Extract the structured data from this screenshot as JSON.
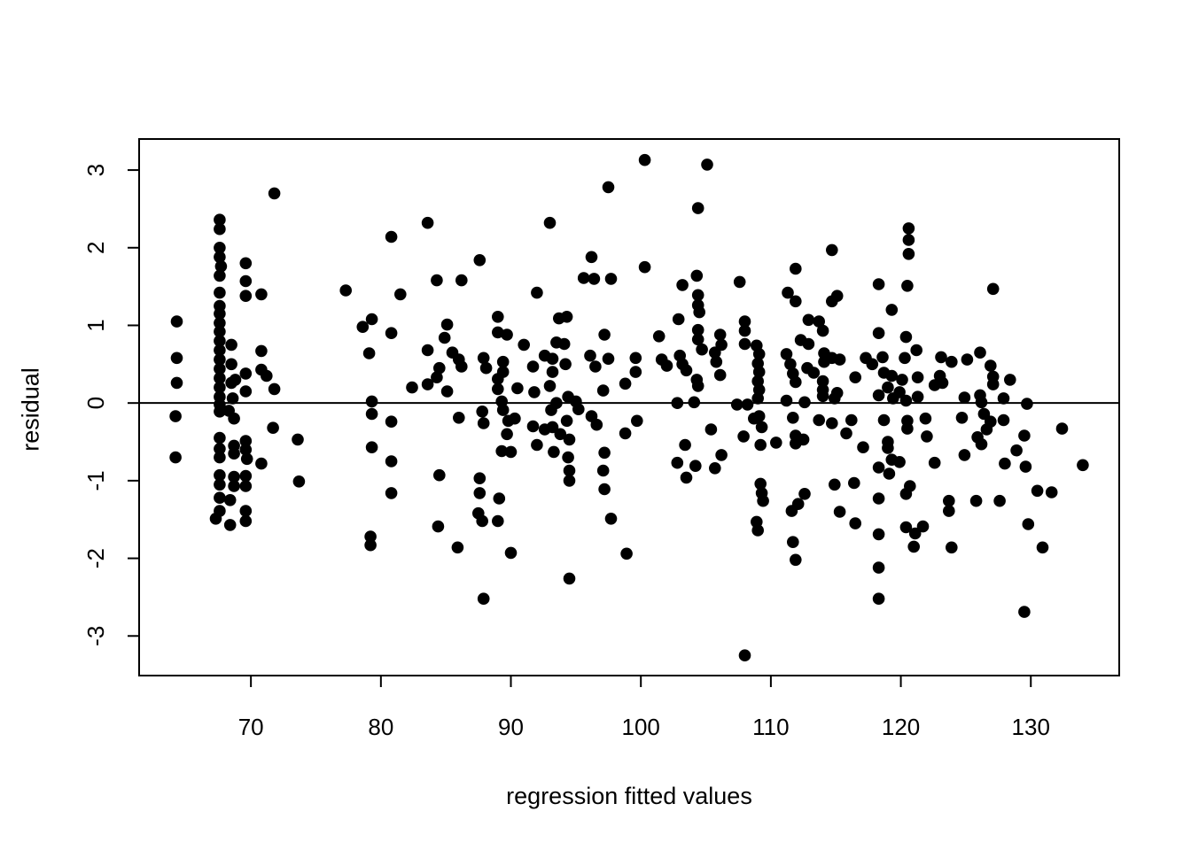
{
  "chart_data": {
    "type": "scatter",
    "title": "",
    "xlabel": "regression fitted values",
    "ylabel": "residual",
    "x_axis": {
      "label": "regression fitted values",
      "ticks": [
        70,
        80,
        90,
        100,
        110,
        120,
        130
      ],
      "range": [
        61.4,
        136.8
      ]
    },
    "y_axis": {
      "label": "residual",
      "ticks": [
        -3,
        -2,
        -1,
        0,
        1,
        2,
        3
      ],
      "range": [
        -3.51,
        3.4
      ]
    },
    "reference_line_y": 0,
    "grid": false,
    "legend": "none",
    "marker": {
      "shape": "filled-circle",
      "color": "#000000",
      "radius_px": 6.8
    },
    "points": [
      [
        71.8,
        2.7
      ],
      [
        67.6,
        2.36
      ],
      [
        67.6,
        2.24
      ],
      [
        67.6,
        2.0
      ],
      [
        67.6,
        1.88
      ],
      [
        67.7,
        1.76
      ],
      [
        67.6,
        1.64
      ],
      [
        69.6,
        1.8
      ],
      [
        69.6,
        1.57
      ],
      [
        69.6,
        1.38
      ],
      [
        70.8,
        1.4
      ],
      [
        77.3,
        1.45
      ],
      [
        67.6,
        1.42
      ],
      [
        67.6,
        1.25
      ],
      [
        67.6,
        1.15
      ],
      [
        67.6,
        1.03
      ],
      [
        67.6,
        0.92
      ],
      [
        64.3,
        1.05
      ],
      [
        64.3,
        0.58
      ],
      [
        64.3,
        0.26
      ],
      [
        64.2,
        -0.17
      ],
      [
        64.2,
        -0.7
      ],
      [
        67.6,
        0.8
      ],
      [
        67.6,
        0.68
      ],
      [
        67.6,
        0.56
      ],
      [
        67.6,
        0.44
      ],
      [
        67.6,
        0.32
      ],
      [
        67.6,
        0.2
      ],
      [
        67.6,
        0.08
      ],
      [
        68.5,
        0.75
      ],
      [
        68.5,
        0.5
      ],
      [
        68.5,
        0.26
      ],
      [
        68.6,
        0.06
      ],
      [
        69.6,
        0.38
      ],
      [
        69.6,
        0.15
      ],
      [
        70.8,
        0.67
      ],
      [
        70.8,
        0.43
      ],
      [
        71.2,
        0.35
      ],
      [
        71.8,
        0.18
      ],
      [
        68.8,
        0.3
      ],
      [
        67.6,
        -0.02
      ],
      [
        68.3,
        -0.1
      ],
      [
        78.6,
        0.98
      ],
      [
        79.3,
        1.08
      ],
      [
        79.1,
        0.64
      ],
      [
        79.3,
        0.02
      ],
      [
        67.6,
        -0.11
      ],
      [
        68.7,
        -0.2
      ],
      [
        67.6,
        -0.45
      ],
      [
        67.6,
        -0.59
      ],
      [
        67.6,
        -0.7
      ],
      [
        68.7,
        -0.55
      ],
      [
        68.7,
        -0.65
      ],
      [
        69.6,
        -0.49
      ],
      [
        69.6,
        -0.6
      ],
      [
        69.7,
        -0.72
      ],
      [
        70.8,
        -0.78
      ],
      [
        71.7,
        -0.32
      ],
      [
        73.6,
        -0.47
      ],
      [
        67.6,
        -0.93
      ],
      [
        67.6,
        -1.05
      ],
      [
        68.7,
        -0.95
      ],
      [
        68.7,
        -1.07
      ],
      [
        69.6,
        -0.94
      ],
      [
        69.6,
        -1.07
      ],
      [
        73.7,
        -1.01
      ],
      [
        67.6,
        -1.22
      ],
      [
        68.4,
        -1.25
      ],
      [
        67.6,
        -1.39
      ],
      [
        67.3,
        -1.49
      ],
      [
        68.4,
        -1.57
      ],
      [
        69.6,
        -1.39
      ],
      [
        69.6,
        -1.52
      ],
      [
        79.3,
        -0.14
      ],
      [
        79.3,
        -0.57
      ],
      [
        79.2,
        -1.72
      ],
      [
        79.2,
        -1.83
      ],
      [
        97.5,
        2.78
      ],
      [
        83.6,
        2.32
      ],
      [
        80.8,
        2.14
      ],
      [
        93.0,
        2.32
      ],
      [
        87.6,
        1.84
      ],
      [
        84.3,
        1.58
      ],
      [
        86.2,
        1.58
      ],
      [
        96.2,
        1.88
      ],
      [
        95.6,
        1.61
      ],
      [
        96.4,
        1.6
      ],
      [
        97.7,
        1.6
      ],
      [
        81.5,
        1.4
      ],
      [
        92.0,
        1.42
      ],
      [
        89.0,
        1.11
      ],
      [
        93.7,
        1.09
      ],
      [
        94.3,
        1.11
      ],
      [
        80.8,
        0.9
      ],
      [
        85.1,
        1.01
      ],
      [
        84.9,
        0.84
      ],
      [
        89.0,
        0.91
      ],
      [
        89.7,
        0.88
      ],
      [
        91.0,
        0.75
      ],
      [
        93.5,
        0.78
      ],
      [
        94.1,
        0.76
      ],
      [
        97.2,
        0.88
      ],
      [
        83.6,
        0.68
      ],
      [
        85.5,
        0.65
      ],
      [
        86.0,
        0.56
      ],
      [
        84.5,
        0.45
      ],
      [
        86.2,
        0.47
      ],
      [
        87.9,
        0.58
      ],
      [
        88.1,
        0.45
      ],
      [
        89.4,
        0.53
      ],
      [
        89.4,
        0.4
      ],
      [
        91.7,
        0.47
      ],
      [
        92.6,
        0.61
      ],
      [
        93.2,
        0.57
      ],
      [
        93.2,
        0.4
      ],
      [
        94.2,
        0.5
      ],
      [
        96.1,
        0.61
      ],
      [
        96.5,
        0.47
      ],
      [
        97.5,
        0.57
      ],
      [
        82.4,
        0.2
      ],
      [
        83.6,
        0.24
      ],
      [
        84.3,
        0.33
      ],
      [
        85.1,
        0.15
      ],
      [
        89.0,
        0.31
      ],
      [
        89.0,
        0.18
      ],
      [
        90.5,
        0.19
      ],
      [
        91.8,
        0.14
      ],
      [
        93.0,
        0.22
      ],
      [
        94.4,
        0.08
      ],
      [
        95.0,
        0.02
      ],
      [
        97.1,
        0.16
      ],
      [
        98.8,
        0.25
      ],
      [
        89.3,
        0.02
      ],
      [
        93.5,
        0.0
      ],
      [
        80.8,
        -0.24
      ],
      [
        80.8,
        -0.75
      ],
      [
        80.8,
        -1.16
      ],
      [
        86.0,
        -0.19
      ],
      [
        87.8,
        -0.11
      ],
      [
        87.9,
        -0.26
      ],
      [
        89.4,
        -0.09
      ],
      [
        89.8,
        -0.23
      ],
      [
        89.7,
        -0.4
      ],
      [
        90.3,
        -0.2
      ],
      [
        89.3,
        -0.62
      ],
      [
        90.0,
        -0.63
      ],
      [
        91.7,
        -0.3
      ],
      [
        92.0,
        -0.54
      ],
      [
        92.6,
        -0.34
      ],
      [
        93.1,
        -0.09
      ],
      [
        93.2,
        -0.31
      ],
      [
        93.8,
        -0.4
      ],
      [
        93.3,
        -0.63
      ],
      [
        94.3,
        -0.23
      ],
      [
        94.5,
        -0.47
      ],
      [
        94.4,
        -0.7
      ],
      [
        94.5,
        -0.87
      ],
      [
        94.5,
        -1.0
      ],
      [
        95.2,
        -0.08
      ],
      [
        96.2,
        -0.17
      ],
      [
        96.6,
        -0.28
      ],
      [
        84.5,
        -0.93
      ],
      [
        87.6,
        -0.97
      ],
      [
        87.6,
        -1.16
      ],
      [
        89.1,
        -1.23
      ],
      [
        87.5,
        -1.42
      ],
      [
        87.8,
        -1.52
      ],
      [
        89.0,
        -1.52
      ],
      [
        84.4,
        -1.59
      ],
      [
        85.9,
        -1.86
      ],
      [
        90.0,
        -1.93
      ],
      [
        94.5,
        -2.26
      ],
      [
        87.9,
        -2.52
      ],
      [
        97.7,
        -1.49
      ],
      [
        97.2,
        -0.64
      ],
      [
        97.1,
        -0.87
      ],
      [
        97.2,
        -1.11
      ],
      [
        98.8,
        -0.39
      ],
      [
        98.9,
        -1.94
      ],
      [
        100.3,
        3.13
      ],
      [
        105.1,
        3.07
      ],
      [
        104.4,
        2.51
      ],
      [
        114.7,
        1.97
      ],
      [
        100.3,
        1.75
      ],
      [
        111.9,
        1.73
      ],
      [
        104.3,
        1.64
      ],
      [
        103.2,
        1.52
      ],
      [
        107.6,
        1.56
      ],
      [
        111.3,
        1.42
      ],
      [
        111.9,
        1.31
      ],
      [
        104.4,
        1.39
      ],
      [
        104.4,
        1.26
      ],
      [
        104.5,
        1.17
      ],
      [
        102.9,
        1.08
      ],
      [
        114.7,
        1.31
      ],
      [
        115.1,
        1.38
      ],
      [
        108.0,
        1.05
      ],
      [
        108.0,
        0.93
      ],
      [
        112.9,
        1.07
      ],
      [
        113.7,
        1.05
      ],
      [
        114.0,
        0.93
      ],
      [
        101.4,
        0.86
      ],
      [
        104.4,
        0.94
      ],
      [
        104.4,
        0.82
      ],
      [
        106.1,
        0.88
      ],
      [
        106.2,
        0.75
      ],
      [
        108.0,
        0.76
      ],
      [
        112.3,
        0.81
      ],
      [
        112.9,
        0.76
      ],
      [
        99.6,
        0.58
      ],
      [
        99.6,
        0.4
      ],
      [
        101.6,
        0.56
      ],
      [
        102.0,
        0.48
      ],
      [
        103.0,
        0.61
      ],
      [
        103.2,
        0.5
      ],
      [
        103.5,
        0.42
      ],
      [
        104.7,
        0.69
      ],
      [
        105.7,
        0.65
      ],
      [
        105.8,
        0.53
      ],
      [
        106.1,
        0.36
      ],
      [
        104.3,
        0.3
      ],
      [
        104.4,
        0.22
      ],
      [
        108.9,
        0.74
      ],
      [
        109.1,
        0.63
      ],
      [
        109.0,
        0.51
      ],
      [
        109.1,
        0.4
      ],
      [
        109.0,
        0.28
      ],
      [
        109.1,
        0.17
      ],
      [
        109.0,
        0.06
      ],
      [
        111.2,
        0.63
      ],
      [
        111.5,
        0.5
      ],
      [
        111.7,
        0.38
      ],
      [
        111.9,
        0.27
      ],
      [
        112.8,
        0.45
      ],
      [
        113.3,
        0.39
      ],
      [
        114.1,
        0.64
      ],
      [
        114.1,
        0.53
      ],
      [
        114.7,
        0.58
      ],
      [
        115.3,
        0.56
      ],
      [
        114.0,
        0.28
      ],
      [
        114.0,
        0.17
      ],
      [
        115.1,
        0.13
      ],
      [
        116.5,
        0.33
      ],
      [
        117.3,
        0.58
      ],
      [
        117.8,
        0.5
      ],
      [
        102.8,
        0.0
      ],
      [
        104.1,
        0.01
      ],
      [
        107.4,
        -0.02
      ],
      [
        108.2,
        -0.02
      ],
      [
        111.2,
        0.03
      ],
      [
        112.6,
        0.01
      ],
      [
        114.0,
        0.09
      ],
      [
        114.9,
        0.06
      ],
      [
        99.7,
        -0.23
      ],
      [
        103.4,
        -0.54
      ],
      [
        102.8,
        -0.77
      ],
      [
        103.5,
        -0.96
      ],
      [
        104.2,
        -0.81
      ],
      [
        105.4,
        -0.34
      ],
      [
        106.2,
        -0.67
      ],
      [
        105.7,
        -0.84
      ],
      [
        107.9,
        -0.43
      ],
      [
        108.7,
        -0.2
      ],
      [
        109.1,
        -0.17
      ],
      [
        109.3,
        -0.31
      ],
      [
        109.2,
        -0.54
      ],
      [
        109.2,
        -1.04
      ],
      [
        109.3,
        -1.16
      ],
      [
        109.4,
        -1.26
      ],
      [
        108.9,
        -1.53
      ],
      [
        109.0,
        -1.64
      ],
      [
        110.4,
        -0.51
      ],
      [
        111.7,
        -0.19
      ],
      [
        111.9,
        -0.42
      ],
      [
        111.9,
        -0.52
      ],
      [
        112.5,
        -0.47
      ],
      [
        112.1,
        -1.3
      ],
      [
        111.6,
        -1.39
      ],
      [
        112.6,
        -1.17
      ],
      [
        111.7,
        -1.79
      ],
      [
        111.9,
        -2.02
      ],
      [
        113.7,
        -0.22
      ],
      [
        114.7,
        -0.26
      ],
      [
        115.8,
        -0.39
      ],
      [
        116.2,
        -0.22
      ],
      [
        114.9,
        -1.05
      ],
      [
        116.4,
        -1.03
      ],
      [
        115.3,
        -1.4
      ],
      [
        116.5,
        -1.55
      ],
      [
        117.1,
        -0.57
      ],
      [
        108.0,
        -3.25
      ],
      [
        120.6,
        2.25
      ],
      [
        120.6,
        2.1
      ],
      [
        120.6,
        1.92
      ],
      [
        118.3,
        1.53
      ],
      [
        120.5,
        1.51
      ],
      [
        127.1,
        1.47
      ],
      [
        119.3,
        1.2
      ],
      [
        118.3,
        0.9
      ],
      [
        120.4,
        0.85
      ],
      [
        118.6,
        0.59
      ],
      [
        120.3,
        0.58
      ],
      [
        121.2,
        0.68
      ],
      [
        123.1,
        0.59
      ],
      [
        123.9,
        0.53
      ],
      [
        125.1,
        0.56
      ],
      [
        126.1,
        0.65
      ],
      [
        126.9,
        0.48
      ],
      [
        118.7,
        0.39
      ],
      [
        119.3,
        0.35
      ],
      [
        120.1,
        0.3
      ],
      [
        121.3,
        0.33
      ],
      [
        119.0,
        0.2
      ],
      [
        119.9,
        0.14
      ],
      [
        123.0,
        0.35
      ],
      [
        123.2,
        0.26
      ],
      [
        122.6,
        0.23
      ],
      [
        127.1,
        0.34
      ],
      [
        127.1,
        0.24
      ],
      [
        128.4,
        0.3
      ],
      [
        118.3,
        0.1
      ],
      [
        119.4,
        0.06
      ],
      [
        120.4,
        0.03
      ],
      [
        121.3,
        0.08
      ],
      [
        124.9,
        0.07
      ],
      [
        126.1,
        0.1
      ],
      [
        126.2,
        0.01
      ],
      [
        127.9,
        0.06
      ],
      [
        129.7,
        -0.01
      ],
      [
        118.7,
        -0.22
      ],
      [
        120.5,
        -0.23
      ],
      [
        120.5,
        -0.33
      ],
      [
        121.9,
        -0.2
      ],
      [
        122.0,
        -0.43
      ],
      [
        124.7,
        -0.19
      ],
      [
        126.4,
        -0.14
      ],
      [
        126.9,
        -0.24
      ],
      [
        127.9,
        -0.22
      ],
      [
        126.6,
        -0.34
      ],
      [
        125.9,
        -0.44
      ],
      [
        126.2,
        -0.53
      ],
      [
        124.9,
        -0.67
      ],
      [
        119.0,
        -0.5
      ],
      [
        119.0,
        -0.58
      ],
      [
        119.3,
        -0.73
      ],
      [
        119.9,
        -0.76
      ],
      [
        118.3,
        -0.83
      ],
      [
        119.1,
        -0.91
      ],
      [
        122.6,
        -0.77
      ],
      [
        129.5,
        -0.42
      ],
      [
        132.4,
        -0.33
      ],
      [
        134.0,
        -0.8
      ],
      [
        128.0,
        -0.78
      ],
      [
        128.9,
        -0.61
      ],
      [
        129.6,
        -0.82
      ],
      [
        120.7,
        -1.07
      ],
      [
        120.4,
        -1.17
      ],
      [
        118.3,
        -1.23
      ],
      [
        123.7,
        -1.26
      ],
      [
        123.7,
        -1.39
      ],
      [
        125.8,
        -1.26
      ],
      [
        127.6,
        -1.26
      ],
      [
        130.5,
        -1.13
      ],
      [
        131.6,
        -1.15
      ],
      [
        120.4,
        -1.6
      ],
      [
        121.1,
        -1.68
      ],
      [
        121.7,
        -1.59
      ],
      [
        118.3,
        -1.69
      ],
      [
        121.0,
        -1.85
      ],
      [
        123.9,
        -1.86
      ],
      [
        129.8,
        -1.56
      ],
      [
        130.9,
        -1.86
      ],
      [
        118.3,
        -2.12
      ],
      [
        118.3,
        -2.52
      ],
      [
        129.5,
        -2.69
      ]
    ]
  }
}
